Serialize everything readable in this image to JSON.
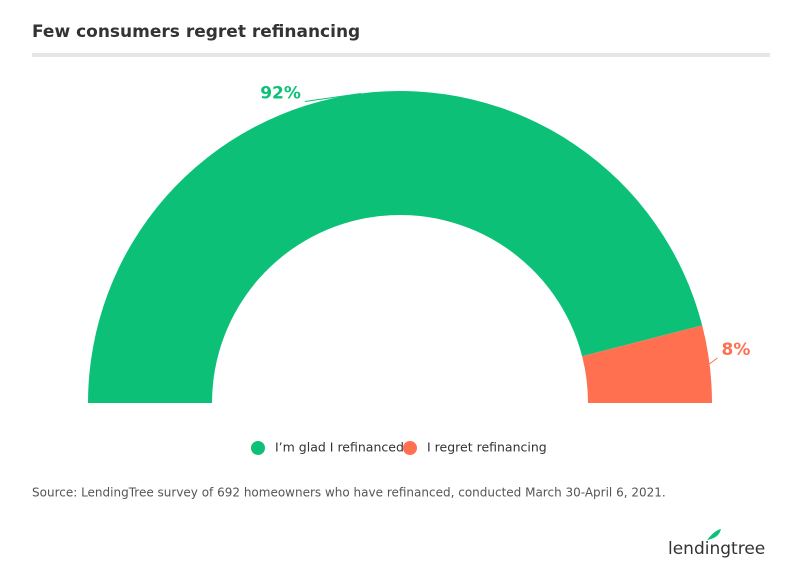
{
  "chart_data": {
    "type": "semidonut",
    "title": "Few consumers regret refinancing",
    "categories": [
      "I’m glad I refinanced",
      "I regret refinancing"
    ],
    "values": [
      92,
      8
    ],
    "value_labels": [
      "92%",
      "8%"
    ],
    "colors": [
      "#0cc177",
      "#ff7050"
    ],
    "source": "Source: LendingTree survey of 692 homeowners who have refinanced, conducted March 30-April 6, 2021."
  },
  "brand": "lendingtree"
}
